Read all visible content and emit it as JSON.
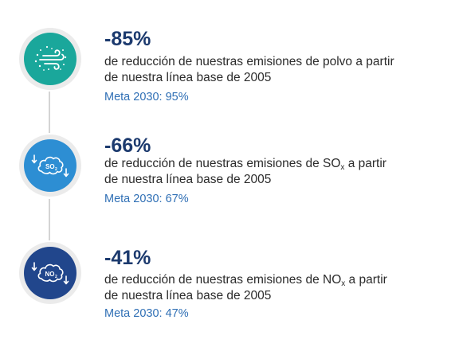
{
  "items": [
    {
      "value": "-85%",
      "line1": "de reducción de nuestras emisiones de polvo a partir",
      "line2": "de nuestra línea base de 2005",
      "goal": "Meta 2030: 95%",
      "icon": "dust-wind-icon",
      "color": "#1aa79b"
    },
    {
      "value": "-66%",
      "line1_pre": "de reducción de nuestras emisiones de SO",
      "line1_sub": "x",
      "line1_post": " a partir",
      "line2": "de nuestra línea base de 2005",
      "goal": "Meta 2030: 67%",
      "icon": "so2-cloud-icon",
      "icon_text": "SO",
      "icon_sub": "2",
      "color": "#2d8ed3"
    },
    {
      "value": "-41%",
      "line1_pre": "de reducción de nuestras emisiones de NO",
      "line1_sub": "x",
      "line1_post": " a partir",
      "line2": "de nuestra línea base de 2005",
      "goal": "Meta 2030: 47%",
      "icon": "no2-cloud-icon",
      "icon_text": "NO",
      "icon_sub": "2",
      "color": "#21468c"
    }
  ]
}
